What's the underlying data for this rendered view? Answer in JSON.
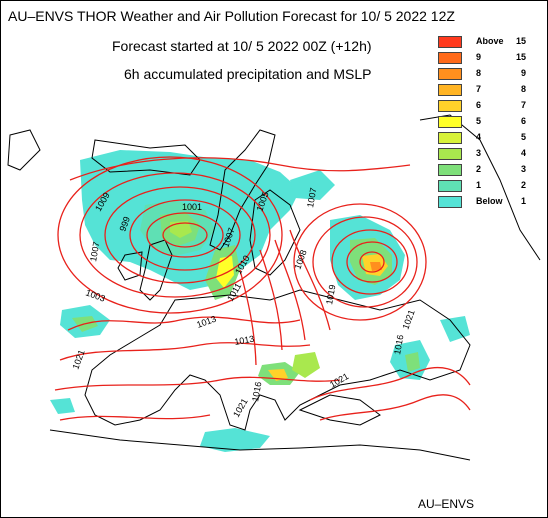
{
  "header": {
    "title": "AU–ENVS THOR Weather and Air Pollution Forecast for 10/ 5 2022  12Z",
    "line1": "Forecast started at 10/ 5 2022  00Z (+12h)",
    "line2": "6h accumulated precipitation and MSLP"
  },
  "legend": {
    "items": [
      {
        "left": "Above",
        "right": "15",
        "color": "#ff3a1e"
      },
      {
        "left": "9",
        "right": "15",
        "color": "#ff6a1a"
      },
      {
        "left": "8",
        "right": "9",
        "color": "#ff8f1e"
      },
      {
        "left": "7",
        "right": "8",
        "color": "#ffb423"
      },
      {
        "left": "6",
        "right": "7",
        "color": "#ffd22a"
      },
      {
        "left": "5",
        "right": "6",
        "color": "#ffff28"
      },
      {
        "left": "4",
        "right": "5",
        "color": "#d8f23a"
      },
      {
        "left": "3",
        "right": "4",
        "color": "#a9e84e"
      },
      {
        "left": "2",
        "right": "3",
        "color": "#7ee07a"
      },
      {
        "left": "1",
        "right": "2",
        "color": "#5fe0b4"
      },
      {
        "left": "Below",
        "right": "1",
        "color": "#55e3d6"
      }
    ]
  },
  "isobar_labels": [
    "1009",
    "1001",
    "1007",
    "999",
    "1003",
    "1007",
    "1005",
    "1007",
    "1008",
    "1010",
    "1011",
    "1013",
    "1013",
    "1019",
    "1021",
    "1021",
    "1021",
    "1016",
    "1016",
    "1021"
  ],
  "credit": "AU–ENVS",
  "colors": {
    "isobar": "#e8211b",
    "coast": "#000000"
  }
}
